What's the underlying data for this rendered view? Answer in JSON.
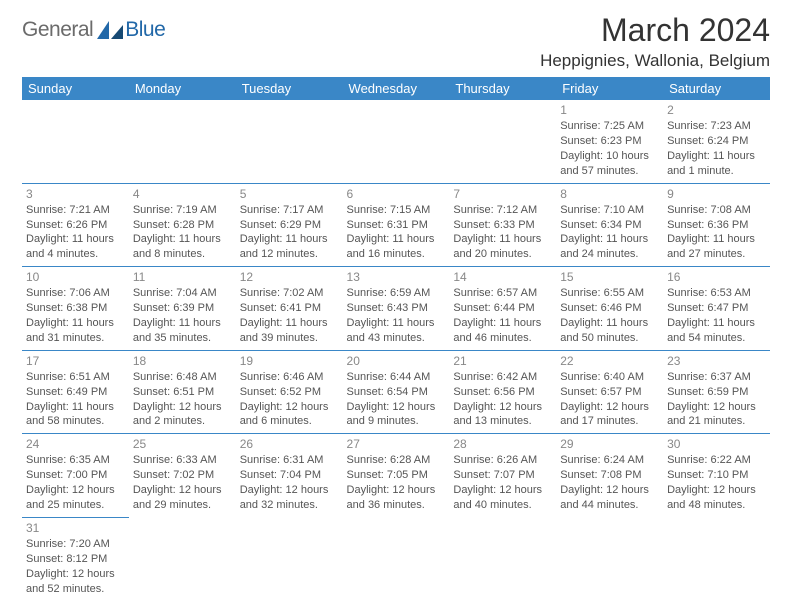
{
  "logo": {
    "text_gray": "General",
    "text_blue": "Blue"
  },
  "title": "March 2024",
  "location": "Heppignies, Wallonia, Belgium",
  "colors": {
    "header_bg": "#3a87c7",
    "header_text": "#ffffff",
    "rule": "#3a87c7",
    "logo_gray": "#6b6b6b",
    "logo_blue": "#2268a8"
  },
  "day_headers": [
    "Sunday",
    "Monday",
    "Tuesday",
    "Wednesday",
    "Thursday",
    "Friday",
    "Saturday"
  ],
  "weeks": [
    [
      null,
      null,
      null,
      null,
      null,
      {
        "n": "1",
        "sunrise": "Sunrise: 7:25 AM",
        "sunset": "Sunset: 6:23 PM",
        "day1": "Daylight: 10 hours",
        "day2": "and 57 minutes."
      },
      {
        "n": "2",
        "sunrise": "Sunrise: 7:23 AM",
        "sunset": "Sunset: 6:24 PM",
        "day1": "Daylight: 11 hours",
        "day2": "and 1 minute."
      }
    ],
    [
      {
        "n": "3",
        "sunrise": "Sunrise: 7:21 AM",
        "sunset": "Sunset: 6:26 PM",
        "day1": "Daylight: 11 hours",
        "day2": "and 4 minutes."
      },
      {
        "n": "4",
        "sunrise": "Sunrise: 7:19 AM",
        "sunset": "Sunset: 6:28 PM",
        "day1": "Daylight: 11 hours",
        "day2": "and 8 minutes."
      },
      {
        "n": "5",
        "sunrise": "Sunrise: 7:17 AM",
        "sunset": "Sunset: 6:29 PM",
        "day1": "Daylight: 11 hours",
        "day2": "and 12 minutes."
      },
      {
        "n": "6",
        "sunrise": "Sunrise: 7:15 AM",
        "sunset": "Sunset: 6:31 PM",
        "day1": "Daylight: 11 hours",
        "day2": "and 16 minutes."
      },
      {
        "n": "7",
        "sunrise": "Sunrise: 7:12 AM",
        "sunset": "Sunset: 6:33 PM",
        "day1": "Daylight: 11 hours",
        "day2": "and 20 minutes."
      },
      {
        "n": "8",
        "sunrise": "Sunrise: 7:10 AM",
        "sunset": "Sunset: 6:34 PM",
        "day1": "Daylight: 11 hours",
        "day2": "and 24 minutes."
      },
      {
        "n": "9",
        "sunrise": "Sunrise: 7:08 AM",
        "sunset": "Sunset: 6:36 PM",
        "day1": "Daylight: 11 hours",
        "day2": "and 27 minutes."
      }
    ],
    [
      {
        "n": "10",
        "sunrise": "Sunrise: 7:06 AM",
        "sunset": "Sunset: 6:38 PM",
        "day1": "Daylight: 11 hours",
        "day2": "and 31 minutes."
      },
      {
        "n": "11",
        "sunrise": "Sunrise: 7:04 AM",
        "sunset": "Sunset: 6:39 PM",
        "day1": "Daylight: 11 hours",
        "day2": "and 35 minutes."
      },
      {
        "n": "12",
        "sunrise": "Sunrise: 7:02 AM",
        "sunset": "Sunset: 6:41 PM",
        "day1": "Daylight: 11 hours",
        "day2": "and 39 minutes."
      },
      {
        "n": "13",
        "sunrise": "Sunrise: 6:59 AM",
        "sunset": "Sunset: 6:43 PM",
        "day1": "Daylight: 11 hours",
        "day2": "and 43 minutes."
      },
      {
        "n": "14",
        "sunrise": "Sunrise: 6:57 AM",
        "sunset": "Sunset: 6:44 PM",
        "day1": "Daylight: 11 hours",
        "day2": "and 46 minutes."
      },
      {
        "n": "15",
        "sunrise": "Sunrise: 6:55 AM",
        "sunset": "Sunset: 6:46 PM",
        "day1": "Daylight: 11 hours",
        "day2": "and 50 minutes."
      },
      {
        "n": "16",
        "sunrise": "Sunrise: 6:53 AM",
        "sunset": "Sunset: 6:47 PM",
        "day1": "Daylight: 11 hours",
        "day2": "and 54 minutes."
      }
    ],
    [
      {
        "n": "17",
        "sunrise": "Sunrise: 6:51 AM",
        "sunset": "Sunset: 6:49 PM",
        "day1": "Daylight: 11 hours",
        "day2": "and 58 minutes."
      },
      {
        "n": "18",
        "sunrise": "Sunrise: 6:48 AM",
        "sunset": "Sunset: 6:51 PM",
        "day1": "Daylight: 12 hours",
        "day2": "and 2 minutes."
      },
      {
        "n": "19",
        "sunrise": "Sunrise: 6:46 AM",
        "sunset": "Sunset: 6:52 PM",
        "day1": "Daylight: 12 hours",
        "day2": "and 6 minutes."
      },
      {
        "n": "20",
        "sunrise": "Sunrise: 6:44 AM",
        "sunset": "Sunset: 6:54 PM",
        "day1": "Daylight: 12 hours",
        "day2": "and 9 minutes."
      },
      {
        "n": "21",
        "sunrise": "Sunrise: 6:42 AM",
        "sunset": "Sunset: 6:56 PM",
        "day1": "Daylight: 12 hours",
        "day2": "and 13 minutes."
      },
      {
        "n": "22",
        "sunrise": "Sunrise: 6:40 AM",
        "sunset": "Sunset: 6:57 PM",
        "day1": "Daylight: 12 hours",
        "day2": "and 17 minutes."
      },
      {
        "n": "23",
        "sunrise": "Sunrise: 6:37 AM",
        "sunset": "Sunset: 6:59 PM",
        "day1": "Daylight: 12 hours",
        "day2": "and 21 minutes."
      }
    ],
    [
      {
        "n": "24",
        "sunrise": "Sunrise: 6:35 AM",
        "sunset": "Sunset: 7:00 PM",
        "day1": "Daylight: 12 hours",
        "day2": "and 25 minutes."
      },
      {
        "n": "25",
        "sunrise": "Sunrise: 6:33 AM",
        "sunset": "Sunset: 7:02 PM",
        "day1": "Daylight: 12 hours",
        "day2": "and 29 minutes."
      },
      {
        "n": "26",
        "sunrise": "Sunrise: 6:31 AM",
        "sunset": "Sunset: 7:04 PM",
        "day1": "Daylight: 12 hours",
        "day2": "and 32 minutes."
      },
      {
        "n": "27",
        "sunrise": "Sunrise: 6:28 AM",
        "sunset": "Sunset: 7:05 PM",
        "day1": "Daylight: 12 hours",
        "day2": "and 36 minutes."
      },
      {
        "n": "28",
        "sunrise": "Sunrise: 6:26 AM",
        "sunset": "Sunset: 7:07 PM",
        "day1": "Daylight: 12 hours",
        "day2": "and 40 minutes."
      },
      {
        "n": "29",
        "sunrise": "Sunrise: 6:24 AM",
        "sunset": "Sunset: 7:08 PM",
        "day1": "Daylight: 12 hours",
        "day2": "and 44 minutes."
      },
      {
        "n": "30",
        "sunrise": "Sunrise: 6:22 AM",
        "sunset": "Sunset: 7:10 PM",
        "day1": "Daylight: 12 hours",
        "day2": "and 48 minutes."
      }
    ],
    [
      {
        "n": "31",
        "sunrise": "Sunrise: 7:20 AM",
        "sunset": "Sunset: 8:12 PM",
        "day1": "Daylight: 12 hours",
        "day2": "and 52 minutes."
      },
      null,
      null,
      null,
      null,
      null,
      null
    ]
  ]
}
